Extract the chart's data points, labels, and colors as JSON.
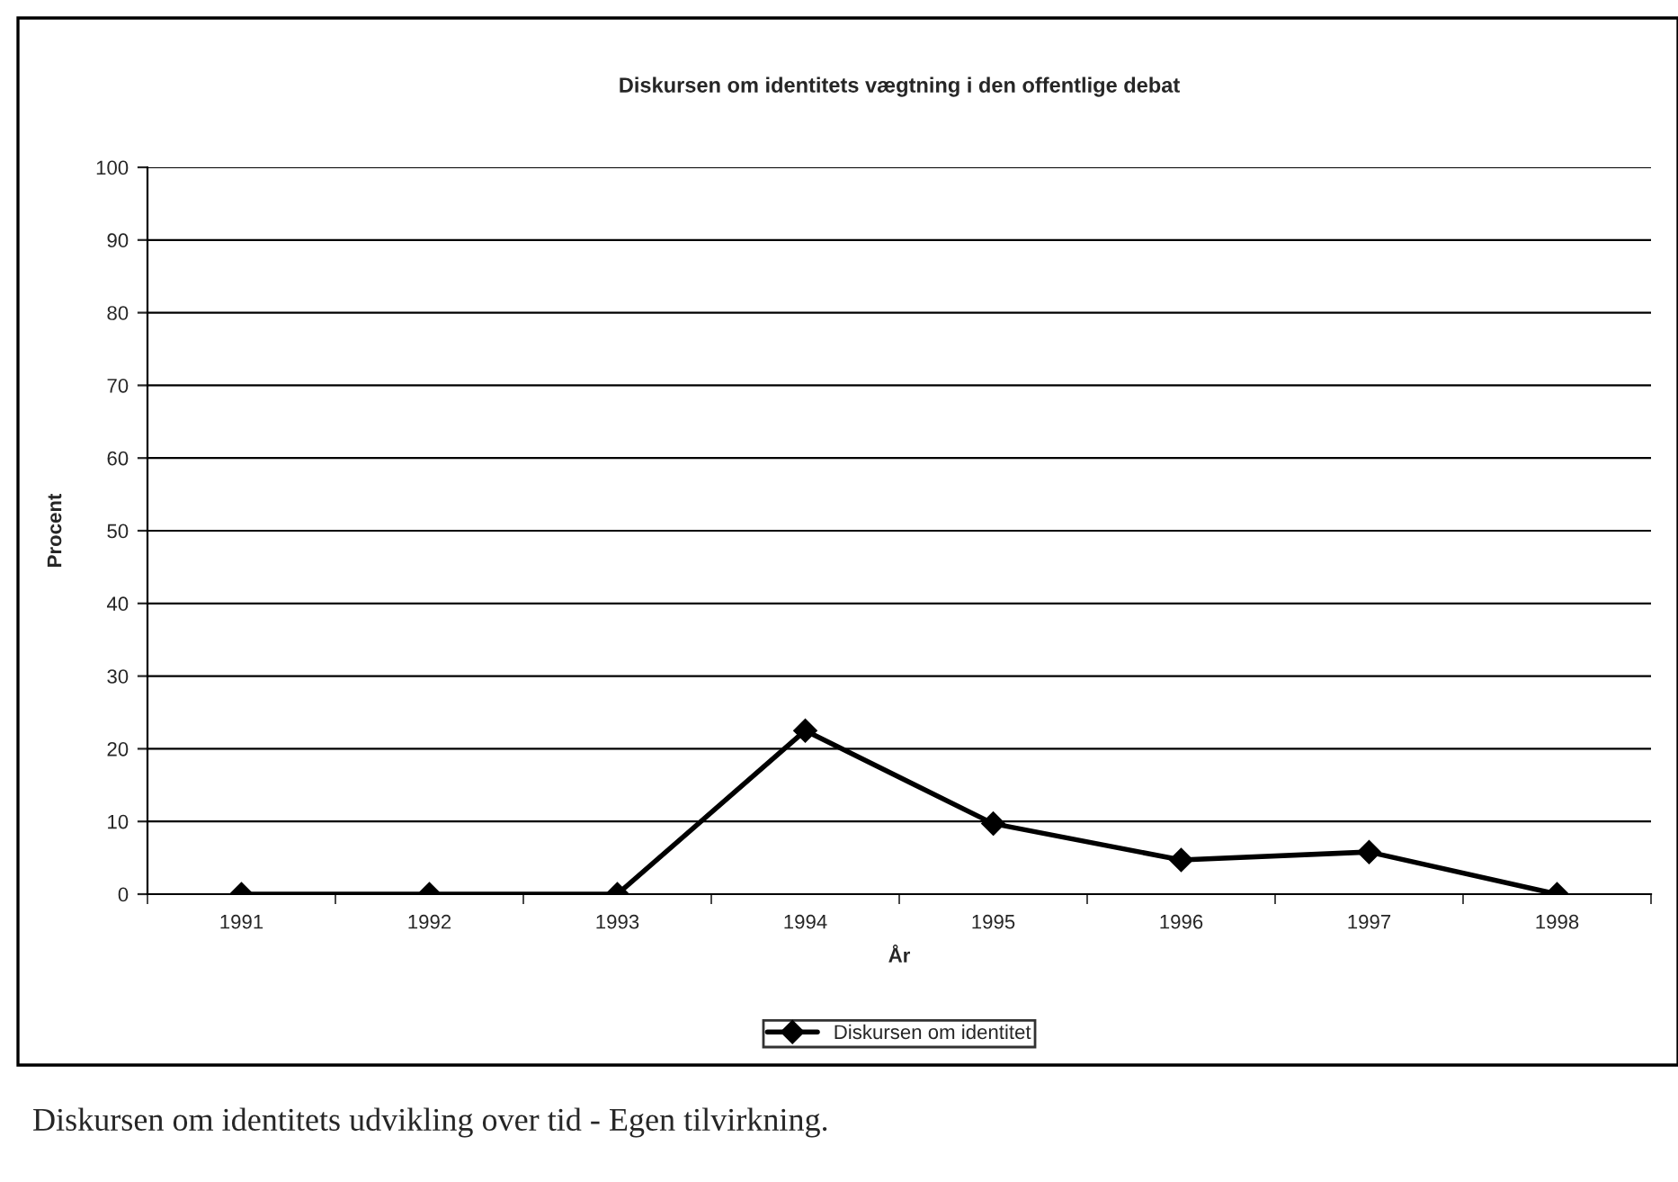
{
  "chart_data": {
    "type": "line",
    "title": "Diskursen om identitets vægtning i den offentlige debat",
    "xlabel": "År",
    "ylabel": "Procent",
    "categories": [
      "1991",
      "1992",
      "1993",
      "1994",
      "1995",
      "1996",
      "1997",
      "1998"
    ],
    "series": [
      {
        "name": "Diskursen om identitet",
        "color": "#000000",
        "values": [
          0,
          0,
          0,
          22.5,
          9.7,
          4.7,
          5.8,
          0
        ]
      }
    ],
    "ylim": [
      0,
      100
    ],
    "yticks": [
      0,
      10,
      20,
      30,
      40,
      50,
      60,
      70,
      80,
      90,
      100
    ],
    "grid": "y",
    "legend": "bottom",
    "marker": "diamond",
    "line_style": "solid",
    "annotations": [
      "Diskursen om identitets udvikling over tid - Egen tilvirkning."
    ]
  }
}
